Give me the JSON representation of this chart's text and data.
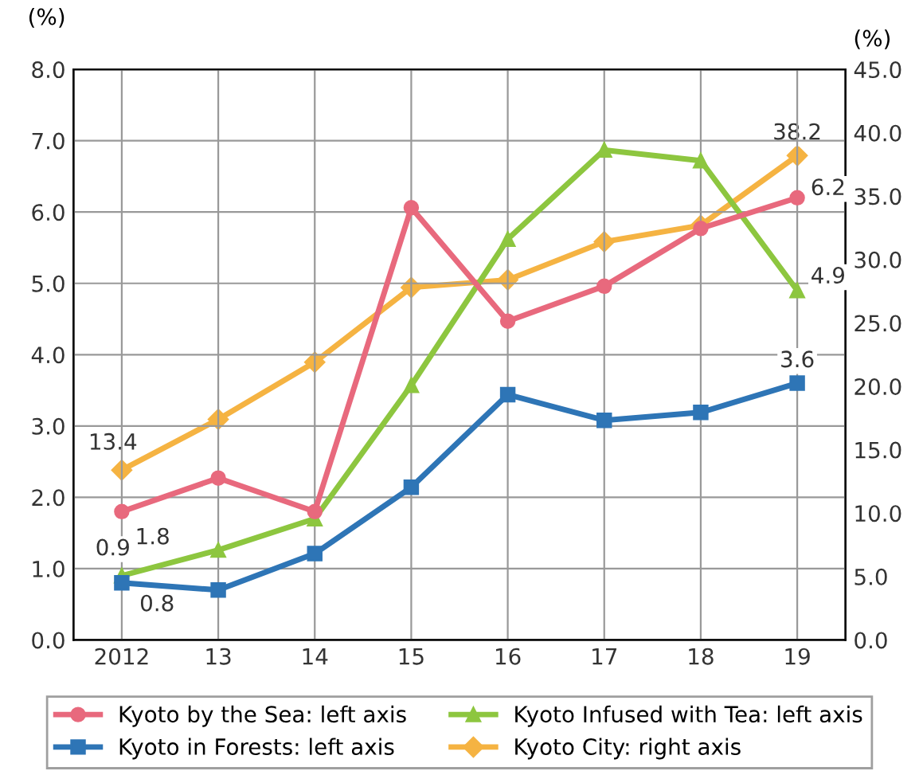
{
  "chart_data": {
    "type": "line",
    "ylabel": "(%)",
    "y2label": "(%)",
    "categories": [
      "2012",
      "13",
      "14",
      "15",
      "16",
      "17",
      "18",
      "19"
    ],
    "series": [
      {
        "name": "Kyoto by the Sea: left axis",
        "color": "#e8697d",
        "marker": "circle",
        "values": [
          1.8,
          2.27,
          1.8,
          6.06,
          4.47,
          4.96,
          5.77,
          6.2
        ],
        "value_labels": [
          "1.8",
          null,
          null,
          null,
          null,
          null,
          null,
          "6.2"
        ]
      },
      {
        "name": "Kyoto in Forests: left axis",
        "color": "#2e75b6",
        "marker": "square",
        "values": [
          0.8,
          0.7,
          1.21,
          2.14,
          3.44,
          3.08,
          3.19,
          3.6
        ],
        "value_labels": [
          "0.8",
          null,
          null,
          null,
          null,
          null,
          null,
          "3.6"
        ]
      },
      {
        "name": "Kyoto Infused with Tea: left axis",
        "color": "#8dc63f",
        "marker": "triangle",
        "values": [
          0.9,
          1.26,
          1.7,
          3.57,
          5.62,
          6.87,
          6.72,
          4.9
        ],
        "value_labels": [
          "0.9",
          null,
          null,
          null,
          null,
          null,
          null,
          "4.9"
        ]
      },
      {
        "name": "Kyoto City: right axis",
        "color": "#f5b342",
        "marker": "diamond",
        "axis": "y2",
        "values": [
          13.4,
          17.4,
          21.9,
          27.8,
          28.4,
          31.4,
          32.7,
          38.2
        ],
        "value_labels": [
          "13.4",
          null,
          null,
          null,
          null,
          null,
          null,
          "38.2"
        ]
      }
    ],
    "ylim": [
      0,
      8
    ],
    "yticks": [
      {
        "value": 0,
        "label": "0.0"
      },
      {
        "value": 1,
        "label": "1.0"
      },
      {
        "value": 2,
        "label": "2.0"
      },
      {
        "value": 3,
        "label": "3.0"
      },
      {
        "value": 4,
        "label": "4.0"
      },
      {
        "value": 5,
        "label": "5.0"
      },
      {
        "value": 6,
        "label": "6.0"
      },
      {
        "value": 7,
        "label": "7.0"
      },
      {
        "value": 8,
        "label": "8.0"
      }
    ],
    "y2lim": [
      0,
      45
    ],
    "y2ticks": [
      {
        "value": 0,
        "label": "0.0"
      },
      {
        "value": 5,
        "label": "5.0"
      },
      {
        "value": 10,
        "label": "10.0"
      },
      {
        "value": 15,
        "label": "15.0"
      },
      {
        "value": 20,
        "label": "20.0"
      },
      {
        "value": 25,
        "label": "25.0"
      },
      {
        "value": 30,
        "label": "30.0"
      },
      {
        "value": 35,
        "label": "35.0"
      },
      {
        "value": 40,
        "label": "40.0"
      },
      {
        "value": 45,
        "label": "45.0"
      }
    ],
    "grid": true,
    "legend": "bottom",
    "line_style": "solid"
  }
}
